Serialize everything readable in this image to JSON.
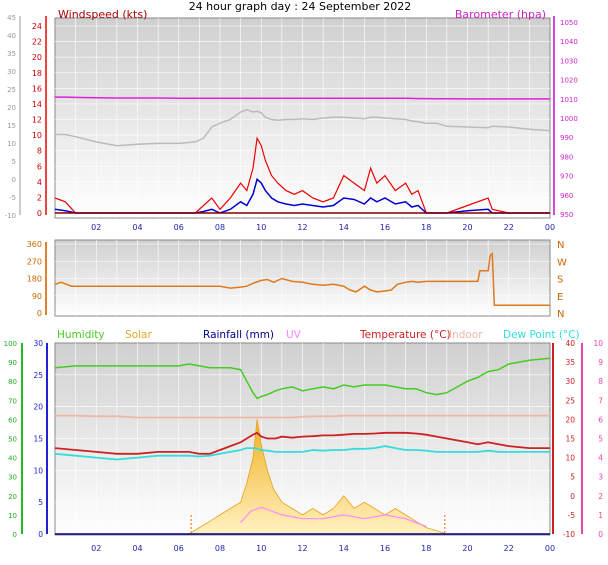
{
  "title": "24 hour graph day : 24 September 2022",
  "colors": {
    "wind": "#ee0000",
    "wind_avg": "#0000cc",
    "wind_label": "#aa0000",
    "baro": "#dd22dd",
    "pressure_line": "#bbbbbb",
    "direction": "#dd7a1a",
    "humidity": "#44cc22",
    "solar": "#ddaa22",
    "rainfall": "#000088",
    "uv": "#ff88ff",
    "temperature": "#cc2222",
    "indoor": "#f0b7a6",
    "dewpoint": "#33dddd",
    "axis_green": "#22bb22",
    "axis_pink": "#ee44aa",
    "axis_blue": "#2222cc"
  },
  "x_ticks": [
    "02",
    "04",
    "06",
    "08",
    "10",
    "12",
    "14",
    "16",
    "18",
    "20",
    "22",
    "00"
  ],
  "chart_data": [
    {
      "type": "line",
      "name": "wind-baro",
      "left_axis_title": "Windspeed (kts)",
      "right_axis_title": "Barometer (hpa)",
      "left_outer_ticks": [
        "45",
        "40",
        "35",
        "30",
        "25",
        "20",
        "15",
        "10",
        "5",
        "0",
        "-5",
        "-10"
      ],
      "left_inner_ticks": [
        "24",
        "22",
        "20",
        "18",
        "16",
        "14",
        "12",
        "10",
        "8",
        "6",
        "4",
        "2",
        "0"
      ],
      "right_ticks": [
        "1050",
        "1040",
        "1030",
        "1020",
        "1010",
        "1000",
        "990",
        "980",
        "970",
        "960",
        "950"
      ],
      "x_hours": [
        0,
        0.5,
        1,
        2,
        3,
        4,
        5,
        6,
        6.8,
        7.2,
        7.6,
        8,
        8.5,
        9,
        9.3,
        9.6,
        9.8,
        10,
        10.2,
        10.5,
        10.8,
        11.2,
        11.6,
        12,
        12.5,
        13,
        13.5,
        14,
        14.5,
        15,
        15.3,
        15.6,
        16,
        16.5,
        17,
        17.3,
        17.6,
        18,
        18.5,
        19,
        20,
        21,
        21.2,
        22,
        23,
        24
      ],
      "wind_gust": [
        2,
        1.5,
        0,
        0,
        0,
        0,
        0,
        0,
        0,
        1,
        2,
        0.5,
        2,
        4,
        3,
        6,
        10,
        9,
        7,
        5,
        4,
        3,
        2.5,
        3,
        2,
        1.5,
        2,
        5,
        4,
        3,
        6,
        4,
        5,
        3,
        4,
        2.5,
        3,
        0,
        0,
        0,
        1,
        2,
        0.5,
        0,
        0,
        0
      ],
      "wind_avg": [
        0.5,
        0.3,
        0,
        0,
        0,
        0,
        0,
        0,
        0,
        0.2,
        0.5,
        0,
        0.5,
        1.5,
        1,
        2.5,
        4.5,
        4,
        3,
        2,
        1.5,
        1.2,
        1,
        1.2,
        1,
        0.8,
        1,
        2,
        1.8,
        1.2,
        2,
        1.5,
        2,
        1.2,
        1.5,
        0.8,
        1,
        0,
        0,
        0,
        0.3,
        0.5,
        0,
        0,
        0,
        0
      ],
      "pressure_trace": [
        10.5,
        10.5,
        10.2,
        9.5,
        9,
        9.2,
        9.3,
        9.3,
        9.5,
        10,
        11.5,
        12,
        12.5,
        13.5,
        13.8,
        13.5,
        13.6,
        13.4,
        12.8,
        12.5,
        12.4,
        12.5,
        12.5,
        12.6,
        12.5,
        12.7,
        12.8,
        12.8,
        12.7,
        12.6,
        12.8,
        12.8,
        12.7,
        12.6,
        12.5,
        12.3,
        12.2,
        12,
        12,
        11.6,
        11.5,
        11.4,
        11.6,
        11.5,
        11.2,
        11
      ],
      "barometer": [
        1012,
        1012,
        1011.8,
        1011.6,
        1011.5,
        1011.5,
        1011.5,
        1011.4,
        1011.4,
        1011.4,
        1011.4,
        1011.4,
        1011.4,
        1011.4,
        1011.4,
        1011.4,
        1011.4,
        1011.4,
        1011.4,
        1011.4,
        1011.4,
        1011.4,
        1011.4,
        1011.4,
        1011.4,
        1011.4,
        1011.4,
        1011.4,
        1011.4,
        1011.4,
        1011.4,
        1011.4,
        1011.4,
        1011.4,
        1011.4,
        1011.3,
        1011.2,
        1011.2,
        1011.1,
        1011.1,
        1011,
        1011,
        1011,
        1011,
        1011,
        1011
      ],
      "ylim_wind": [
        0,
        25
      ],
      "ylim_baro": [
        950,
        1050
      ]
    },
    {
      "type": "line",
      "name": "wind-direction",
      "left_ticks": [
        "360",
        "270",
        "180",
        "90",
        "0"
      ],
      "compass_labels": [
        "N",
        "W",
        "S",
        "E",
        "N"
      ],
      "x_hours": [
        0,
        0.3,
        0.8,
        2,
        4,
        6,
        7,
        8,
        8.5,
        9,
        9.3,
        9.6,
        10,
        10.3,
        10.6,
        11,
        11.5,
        12,
        12.5,
        13,
        13.5,
        14,
        14.3,
        14.6,
        15,
        15.3,
        15.6,
        16,
        16.3,
        16.6,
        17,
        17.3,
        17.6,
        18,
        19,
        20,
        20.5,
        20.6,
        21,
        21.1,
        21.2,
        21.3,
        22,
        23,
        24
      ],
      "direction": [
        150,
        160,
        140,
        140,
        140,
        140,
        140,
        140,
        130,
        135,
        140,
        155,
        170,
        175,
        160,
        180,
        165,
        160,
        150,
        145,
        150,
        140,
        120,
        110,
        140,
        120,
        110,
        115,
        120,
        150,
        160,
        165,
        160,
        165,
        165,
        165,
        165,
        220,
        220,
        300,
        310,
        40,
        40,
        40,
        40
      ],
      "ylim": [
        0,
        360
      ]
    },
    {
      "type": "line",
      "name": "temp-humidity",
      "legend": [
        "Humidity",
        "Solar",
        "Rainfall (mm)",
        "UV",
        "Temperature (°C)",
        "Indoor",
        "Dew Point (°C)"
      ],
      "left_outer_ticks": [
        "100",
        "90",
        "80",
        "70",
        "60",
        "50",
        "40",
        "30",
        "20",
        "10",
        "0"
      ],
      "left_inner_ticks": [
        "30",
        "25",
        "20",
        "15",
        "10",
        "5",
        "0"
      ],
      "right_inner_ticks": [
        "40",
        "35",
        "30",
        "25",
        "20",
        "15",
        "10",
        "5",
        "0",
        "-5",
        "-10"
      ],
      "right_outer_ticks": [
        "10",
        "9",
        "8",
        "7",
        "6",
        "5",
        "4",
        "3",
        "2",
        "1",
        "0"
      ],
      "x_hours": [
        0,
        1,
        2,
        3,
        4,
        5,
        6,
        6.5,
        7,
        7.5,
        8,
        8.5,
        9,
        9.3,
        9.6,
        9.8,
        10,
        10.3,
        10.7,
        11,
        11.5,
        12,
        12.5,
        13,
        13.5,
        14,
        14.5,
        15,
        15.5,
        16,
        16.5,
        17,
        17.5,
        18,
        18.5,
        19,
        20,
        20.5,
        21,
        21.5,
        22,
        23,
        24
      ],
      "humidity": [
        87,
        88,
        88,
        88,
        88,
        88,
        88,
        89,
        88,
        87,
        87,
        87,
        86,
        80,
        74,
        71,
        72,
        73,
        75,
        76,
        77,
        75,
        76,
        77,
        76,
        78,
        77,
        78,
        78,
        78,
        77,
        76,
        76,
        74,
        73,
        74,
        80,
        82,
        85,
        86,
        89,
        91,
        92
      ],
      "temperature": [
        12.5,
        12,
        11.5,
        11,
        11,
        11.5,
        11.5,
        11.5,
        11,
        11,
        12,
        13,
        14,
        15,
        16,
        16.5,
        15.5,
        15,
        15,
        15.5,
        15.2,
        15.5,
        15.6,
        15.8,
        15.8,
        16,
        16.2,
        16.2,
        16.3,
        16.5,
        16.5,
        16.5,
        16.3,
        16,
        15.5,
        15,
        14,
        13.5,
        14,
        13.5,
        13,
        12.5,
        12.5
      ],
      "dewpoint": [
        11,
        10.5,
        10,
        9.5,
        10,
        10.5,
        10.5,
        10.5,
        10.3,
        10.5,
        11,
        11.5,
        12,
        12.5,
        12.5,
        12.3,
        12,
        11.8,
        11.5,
        11.5,
        11.5,
        11.5,
        12,
        11.8,
        12,
        12,
        12.3,
        12.3,
        12.5,
        13,
        12.5,
        12,
        12,
        11.8,
        11.5,
        11.5,
        11.5,
        11.5,
        11.8,
        11.5,
        11.5,
        11.5,
        11.5
      ],
      "indoor": [
        21,
        21,
        20.8,
        20.8,
        20.5,
        20.5,
        20.5,
        20.5,
        20.5,
        20.5,
        20.5,
        20.5,
        20.5,
        20.5,
        20.5,
        20.5,
        20.5,
        20.5,
        20.5,
        20.5,
        20.5,
        20.7,
        20.8,
        20.8,
        20.8,
        21,
        21,
        21,
        21,
        21,
        21,
        21,
        21,
        21,
        21,
        21,
        21,
        21,
        21,
        21,
        21,
        21,
        21
      ],
      "solar_x": [
        6.5,
        7,
        7.5,
        8,
        8.5,
        9,
        9.3,
        9.6,
        9.8,
        10,
        10.3,
        10.6,
        11,
        11.5,
        12,
        12.5,
        13,
        13.5,
        14,
        14.5,
        15,
        15.5,
        16,
        16.5,
        17,
        17.5,
        18,
        18.5,
        19
      ],
      "solar": [
        0,
        1,
        2,
        3,
        4,
        5,
        8,
        12,
        18,
        14,
        10,
        7,
        5,
        4,
        3,
        4,
        3,
        4,
        6,
        4,
        5,
        4,
        3,
        4,
        3,
        2,
        1,
        0.5,
        0
      ],
      "uv_x": [
        9,
        9.5,
        10,
        10.5,
        11,
        12,
        13,
        14,
        15,
        16,
        17,
        17.5,
        18
      ],
      "uv": [
        -7,
        -4,
        -3,
        -4,
        -5,
        -6,
        -6,
        -5,
        -6,
        -5,
        -6,
        -7,
        -8
      ],
      "rainfall": 0,
      "ylim_left": [
        0,
        30
      ],
      "ylim_temp": [
        -10,
        40
      ]
    }
  ]
}
